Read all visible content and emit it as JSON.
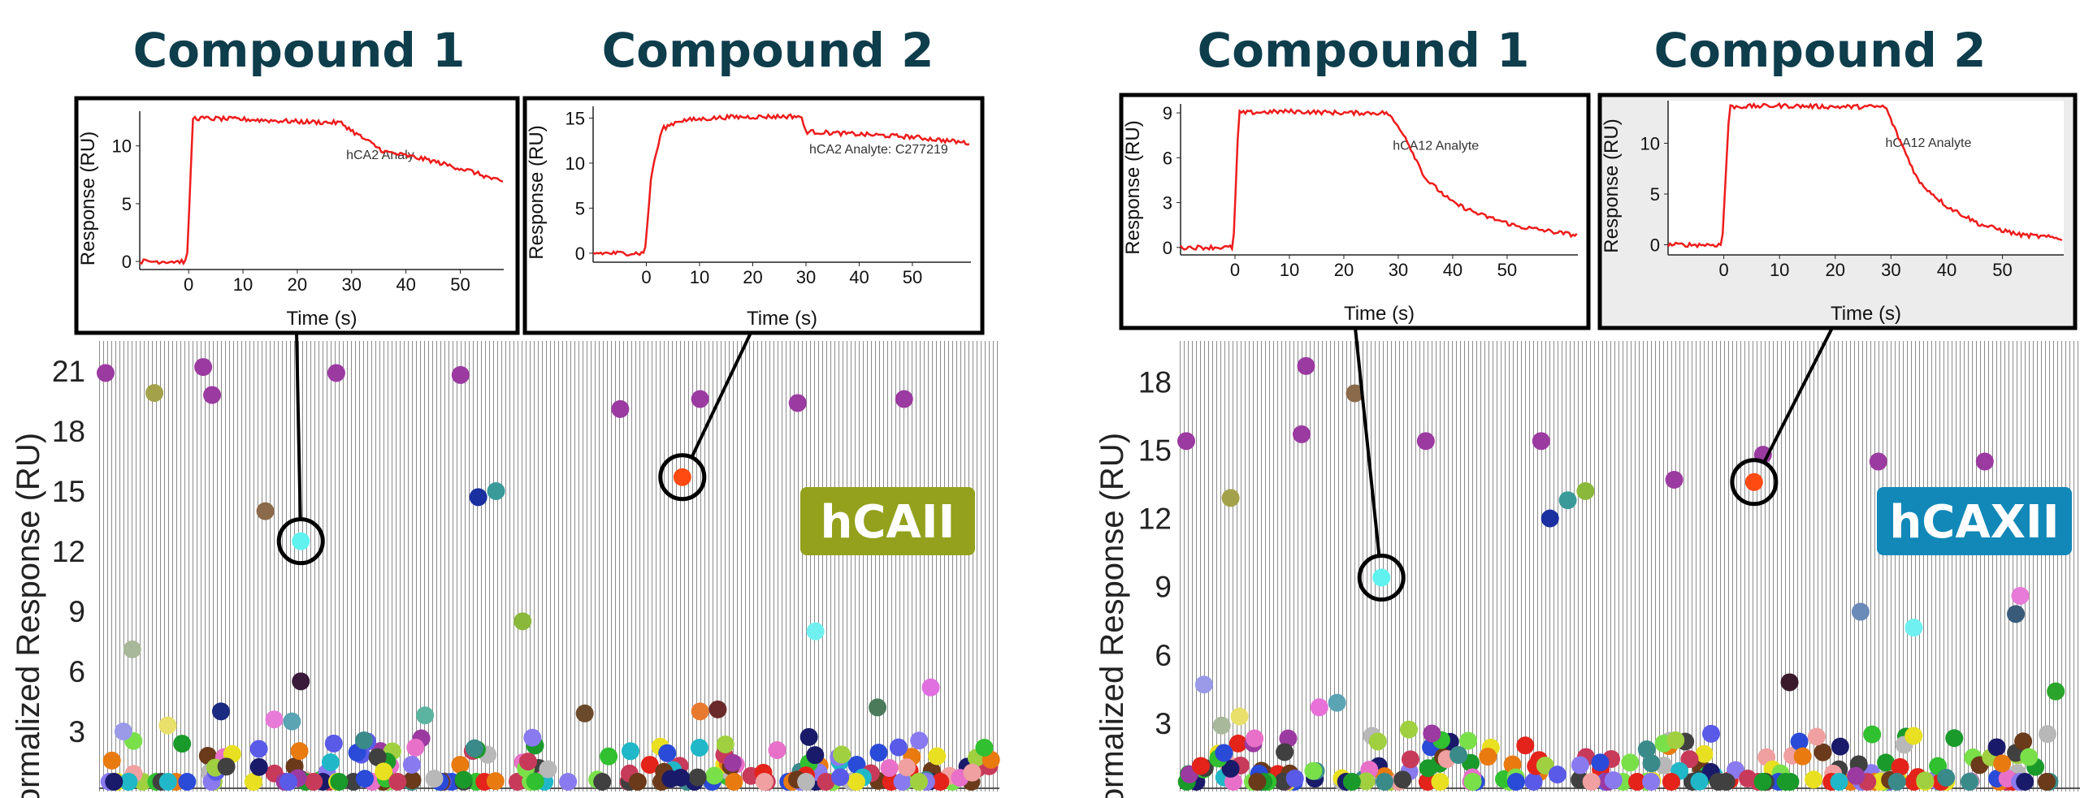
{
  "chart_data": [
    {
      "type": "scatter",
      "title": "hCAII",
      "badge_color": "#93a11d",
      "xlabel": "",
      "ylabel": "Normalized Response (RU)",
      "yticks": [
        3,
        6,
        9,
        12,
        15,
        18,
        21
      ],
      "ylim": [
        0,
        22.5
      ],
      "grid": "dense vertical gray lines",
      "highlight": [
        {
          "label": "Compound 1",
          "x": 0.22,
          "y": 12.5,
          "color": "#5ff2ef"
        },
        {
          "label": "Compound 2",
          "x": 0.65,
          "y": 15.7,
          "color": "#ff4a12"
        }
      ],
      "points": [
        {
          "x": 0.0,
          "y": 20.9,
          "c": "#9b3aa0"
        },
        {
          "x": 0.055,
          "y": 19.9,
          "c": "#a3a24b"
        },
        {
          "x": 0.11,
          "y": 21.2,
          "c": "#9b3aa0"
        },
        {
          "x": 0.12,
          "y": 19.8,
          "c": "#9b3aa0"
        },
        {
          "x": 0.26,
          "y": 20.9,
          "c": "#9b3aa0"
        },
        {
          "x": 0.4,
          "y": 20.8,
          "c": "#9b3aa0"
        },
        {
          "x": 0.58,
          "y": 19.1,
          "c": "#9b3aa0"
        },
        {
          "x": 0.67,
          "y": 19.6,
          "c": "#9b3aa0"
        },
        {
          "x": 0.78,
          "y": 19.4,
          "c": "#9b3aa0"
        },
        {
          "x": 0.9,
          "y": 19.6,
          "c": "#9b3aa0"
        },
        {
          "x": 0.18,
          "y": 14.0,
          "c": "#8a6a4a"
        },
        {
          "x": 0.44,
          "y": 15.0,
          "c": "#3a9a9a"
        },
        {
          "x": 0.42,
          "y": 14.7,
          "c": "#1a2fa0"
        },
        {
          "x": 0.03,
          "y": 7.1,
          "c": "#a8b89a"
        },
        {
          "x": 0.47,
          "y": 8.5,
          "c": "#8ab83a"
        },
        {
          "x": 0.8,
          "y": 8.0,
          "c": "#70f0f0"
        },
        {
          "x": 0.22,
          "y": 5.5,
          "c": "#3a1a3a"
        },
        {
          "x": 0.13,
          "y": 4.0,
          "c": "#1a2a80"
        },
        {
          "x": 0.19,
          "y": 3.6,
          "c": "#e87ad8"
        },
        {
          "x": 0.21,
          "y": 3.5,
          "c": "#5aa4b4"
        },
        {
          "x": 0.36,
          "y": 3.8,
          "c": "#5ab4a0"
        },
        {
          "x": 0.54,
          "y": 3.9,
          "c": "#6a4a2a"
        },
        {
          "x": 0.67,
          "y": 4.0,
          "c": "#e87a30"
        },
        {
          "x": 0.69,
          "y": 4.1,
          "c": "#6a2a2a"
        },
        {
          "x": 0.87,
          "y": 4.2,
          "c": "#4a7a5a"
        },
        {
          "x": 0.93,
          "y": 5.2,
          "c": "#e070e0"
        },
        {
          "x": 0.02,
          "y": 3.0,
          "c": "#9a9ae8"
        },
        {
          "x": 0.07,
          "y": 3.3,
          "c": "#e8e06a"
        }
      ]
    },
    {
      "type": "scatter",
      "title": "hCAXII",
      "badge_color": "#1188b8",
      "xlabel": "",
      "ylabel": "Normalized Response (RU)",
      "yticks": [
        3,
        6,
        9,
        12,
        15,
        18
      ],
      "ylim": [
        0,
        19.8
      ],
      "grid": "dense vertical gray lines",
      "highlight": [
        {
          "label": "Compound 1",
          "x": 0.22,
          "y": 9.4,
          "color": "#5ff2ef"
        },
        {
          "label": "Compound 2",
          "x": 0.64,
          "y": 13.6,
          "color": "#ff4a12"
        }
      ],
      "points": [
        {
          "x": 0.0,
          "y": 15.4,
          "c": "#9b3aa0"
        },
        {
          "x": 0.135,
          "y": 18.7,
          "c": "#9b3aa0"
        },
        {
          "x": 0.13,
          "y": 15.7,
          "c": "#9b3aa0"
        },
        {
          "x": 0.19,
          "y": 17.5,
          "c": "#8a6a4a"
        },
        {
          "x": 0.27,
          "y": 15.4,
          "c": "#9b3aa0"
        },
        {
          "x": 0.4,
          "y": 15.4,
          "c": "#9b3aa0"
        },
        {
          "x": 0.55,
          "y": 13.7,
          "c": "#9b3aa0"
        },
        {
          "x": 0.65,
          "y": 14.8,
          "c": "#9b3aa0"
        },
        {
          "x": 0.78,
          "y": 14.5,
          "c": "#9b3aa0"
        },
        {
          "x": 0.9,
          "y": 14.5,
          "c": "#9b3aa0"
        },
        {
          "x": 0.05,
          "y": 12.9,
          "c": "#a3a24b"
        },
        {
          "x": 0.43,
          "y": 12.8,
          "c": "#3a9a9a"
        },
        {
          "x": 0.45,
          "y": 13.2,
          "c": "#8ab83a"
        },
        {
          "x": 0.41,
          "y": 12.0,
          "c": "#1a2fa0"
        },
        {
          "x": 0.76,
          "y": 7.9,
          "c": "#6a8ab8"
        },
        {
          "x": 0.82,
          "y": 7.2,
          "c": "#70f0f0"
        },
        {
          "x": 0.94,
          "y": 8.6,
          "c": "#e87ad8"
        },
        {
          "x": 0.935,
          "y": 7.8,
          "c": "#3a5a7a"
        },
        {
          "x": 0.68,
          "y": 4.8,
          "c": "#3a1a2a"
        },
        {
          "x": 0.98,
          "y": 4.4,
          "c": "#2aa42a"
        },
        {
          "x": 0.02,
          "y": 4.7,
          "c": "#9a9ae8"
        },
        {
          "x": 0.06,
          "y": 3.3,
          "c": "#e8e06a"
        },
        {
          "x": 0.15,
          "y": 3.7,
          "c": "#e870d8"
        },
        {
          "x": 0.17,
          "y": 3.9,
          "c": "#5aa4b4"
        },
        {
          "x": 0.04,
          "y": 2.9,
          "c": "#a8b89a"
        }
      ]
    }
  ],
  "inset_chart_data": [
    {
      "type": "line",
      "header": "Compound 1",
      "xlabel": "Time (s)",
      "ylabel": "Response (RU)",
      "xticks": [
        0,
        10,
        20,
        30,
        40,
        50
      ],
      "yticks": [
        0,
        5,
        10
      ],
      "xlim": [
        -9,
        58
      ],
      "ylim": [
        -0.7,
        13
      ],
      "annotation": "hCA2 Analy",
      "series": [
        {
          "x": [
            -9,
            -0.3,
            0.8,
            10,
            20,
            28,
            31,
            36,
            44,
            52,
            58
          ],
          "y": [
            0,
            0,
            12.4,
            12.3,
            12.1,
            12.0,
            11.0,
            9.5,
            8.8,
            7.8,
            6.8
          ]
        }
      ]
    },
    {
      "type": "line",
      "header": "Compound 2",
      "xlabel": "Time (s)",
      "ylabel": "Response (RU)",
      "xticks": [
        0,
        10,
        20,
        30,
        40,
        50
      ],
      "yticks": [
        0,
        5,
        10,
        15
      ],
      "xlim": [
        -10,
        61
      ],
      "ylim": [
        -1,
        16.3
      ],
      "annotation": "hCA2 Analyte: C277219",
      "series": [
        {
          "x": [
            -10,
            -0.3,
            1,
            3,
            6,
            15,
            29,
            30,
            40,
            50,
            61
          ],
          "y": [
            0,
            0,
            9,
            13.8,
            14.7,
            15.1,
            15.2,
            13.5,
            13.2,
            12.9,
            12.2
          ]
        }
      ]
    },
    {
      "type": "line",
      "header": "Compound 1",
      "xlabel": "Time (s)",
      "ylabel": "Response (RU)",
      "xticks": [
        0,
        10,
        20,
        30,
        40,
        50
      ],
      "yticks": [
        0,
        3,
        6,
        9
      ],
      "xlim": [
        -10,
        63
      ],
      "ylim": [
        -0.5,
        9.6
      ],
      "annotation": "hCA12 Analyte",
      "series": [
        {
          "x": [
            -10,
            -0.3,
            0.7,
            10,
            20,
            28,
            31,
            35,
            40,
            45,
            52,
            63
          ],
          "y": [
            0,
            0,
            9.0,
            9.1,
            9.0,
            9.0,
            7.6,
            4.6,
            3.0,
            2.2,
            1.4,
            0.8
          ]
        }
      ]
    },
    {
      "type": "line",
      "header": "Compound 2",
      "xlabel": "Time (s)",
      "ylabel": "Response (RU)",
      "xticks": [
        0,
        10,
        20,
        30,
        40,
        50
      ],
      "yticks": [
        0,
        5,
        10
      ],
      "xlim": [
        -10,
        61
      ],
      "ylim": [
        -1,
        14.2
      ],
      "annotation": "hCA12 Analyte",
      "series": [
        {
          "x": [
            -10,
            -0.3,
            1,
            10,
            20,
            29,
            31,
            35,
            40,
            46,
            53,
            61
          ],
          "y": [
            0,
            0,
            13.6,
            13.7,
            13.6,
            13.6,
            11.0,
            6.2,
            3.8,
            2.0,
            1.0,
            0.6
          ]
        }
      ]
    }
  ]
}
